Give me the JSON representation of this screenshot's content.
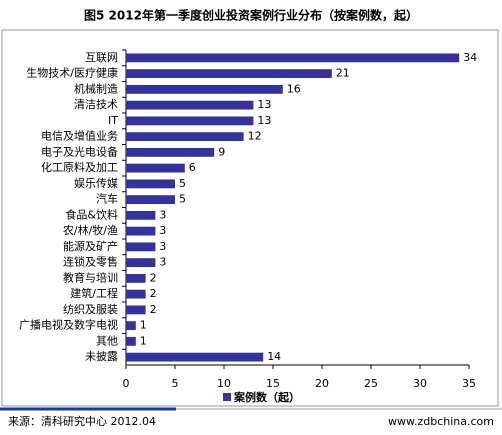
{
  "chart_data": {
    "type": "bar",
    "orientation": "horizontal",
    "title": "图5 2012年第一季度创业投资案例行业分布（按案例数，起）",
    "categories": [
      "互联网",
      "生物技术/医疗健康",
      "机械制造",
      "清洁技术",
      "IT",
      "电信及增值业务",
      "电子及光电设备",
      "化工原料及加工",
      "娱乐传媒",
      "汽车",
      "食品&饮料",
      "农/林/牧/渔",
      "能源及矿产",
      "连锁及零售",
      "教育与培训",
      "建筑/工程",
      "纺织及服装",
      "广播电视及数字电视",
      "其他",
      "未披露"
    ],
    "series": [
      {
        "name": "案例数（起）",
        "color": "#333399",
        "values": [
          34,
          21,
          16,
          13,
          13,
          12,
          9,
          6,
          5,
          5,
          3,
          3,
          3,
          3,
          2,
          2,
          2,
          1,
          1,
          14
        ]
      }
    ],
    "xlim": [
      0,
      35
    ],
    "xticks": [
      0,
      5,
      10,
      15,
      20,
      25,
      30,
      35
    ],
    "grid": false,
    "legend": "bottom",
    "source": "来源：清科研究中心 2012.04",
    "website": "www.zdbchina.com"
  }
}
